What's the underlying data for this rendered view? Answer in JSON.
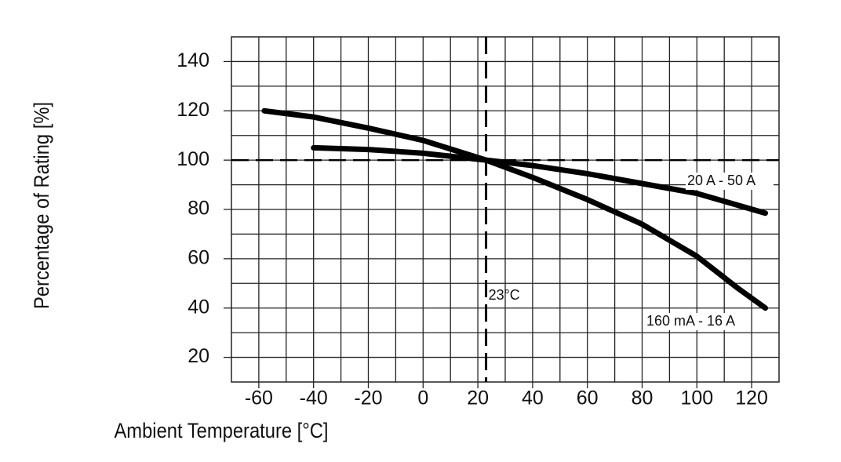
{
  "chart_data": {
    "type": "line",
    "x_label": "Ambient Temperature [°C]",
    "y_label": "Percentage of Rating [%]",
    "xlim": [
      -70,
      130
    ],
    "ylim": [
      10,
      150
    ],
    "xticks": [
      -60,
      -40,
      -20,
      0,
      20,
      40,
      60,
      80,
      100,
      120
    ],
    "yticks": [
      20,
      40,
      60,
      80,
      100,
      120,
      140
    ],
    "minor_xticks": [
      -50,
      -30,
      -10,
      10,
      30,
      50,
      70,
      90,
      110
    ],
    "minor_yticks": [
      30,
      50,
      70,
      90,
      110,
      130
    ],
    "grid": true,
    "vline": 23,
    "vline_label": "23°C",
    "hline": 100,
    "series": [
      {
        "name": "160 mA - 16 A",
        "color": "#000000",
        "x": [
          -58,
          -40,
          -20,
          0,
          23,
          40,
          60,
          80,
          100,
          115,
          125
        ],
        "values": [
          120,
          117.5,
          113,
          108,
          100,
          93,
          84,
          74,
          61,
          48,
          40
        ]
      },
      {
        "name": "20 A - 50 A",
        "color": "#000000",
        "x": [
          -40,
          -20,
          0,
          23,
          40,
          60,
          80,
          100,
          125
        ],
        "values": [
          105,
          104.3,
          102.8,
          100,
          97.8,
          94.5,
          90.5,
          86.5,
          78.5
        ]
      }
    ]
  }
}
